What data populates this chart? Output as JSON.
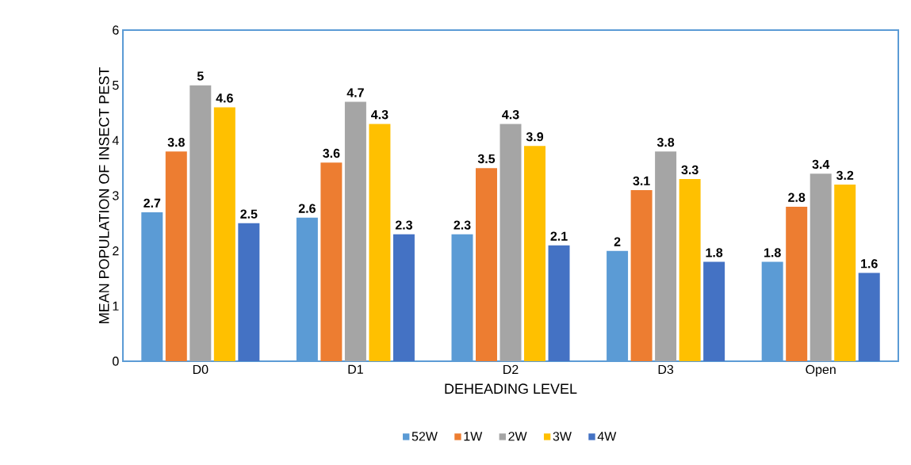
{
  "chart_data": {
    "type": "bar",
    "xlabel": "DEHEADING LEVEL",
    "ylabel": "MEAN POPULATION OF INSECT PEST",
    "categories": [
      "D0",
      "D1",
      "D2",
      "D3",
      "Open"
    ],
    "series": [
      {
        "name": "52W",
        "color": "#5b9bd5",
        "values": [
          2.7,
          2.6,
          2.3,
          2,
          1.8
        ]
      },
      {
        "name": "1W",
        "color": "#ed7d31",
        "values": [
          3.8,
          3.6,
          3.5,
          3.1,
          2.8
        ]
      },
      {
        "name": "2W",
        "color": "#a5a5a5",
        "values": [
          5,
          4.7,
          4.3,
          3.8,
          3.4
        ]
      },
      {
        "name": "3W",
        "color": "#ffc000",
        "values": [
          4.6,
          4.3,
          3.9,
          3.3,
          3.2
        ]
      },
      {
        "name": "4W",
        "color": "#4472c4",
        "values": [
          2.5,
          2.3,
          2.1,
          1.8,
          1.6
        ]
      }
    ],
    "ylim": [
      0,
      6
    ],
    "yticks": [
      0,
      1,
      2,
      3,
      4,
      5,
      6
    ],
    "grid": false,
    "legend": "bottom",
    "data_labels": true
  }
}
